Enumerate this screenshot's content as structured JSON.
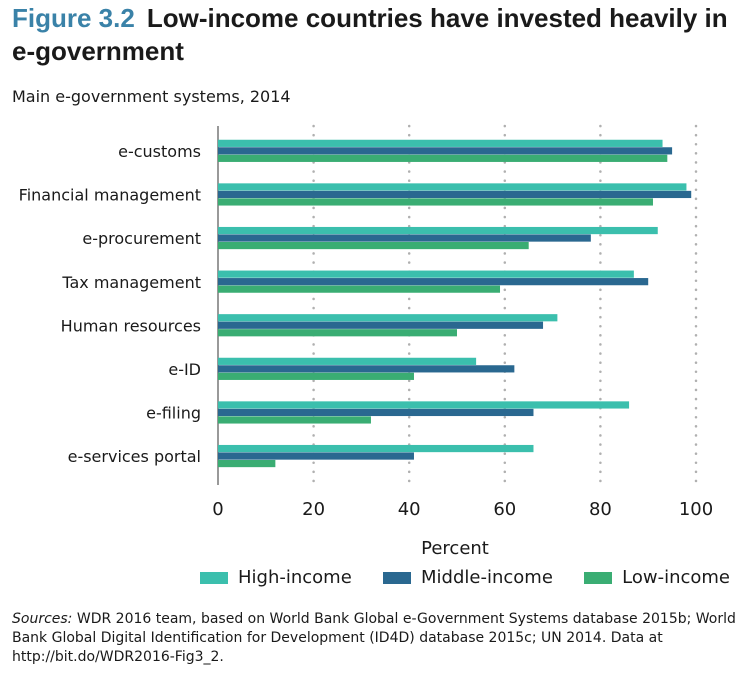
{
  "header": {
    "figure_label": "Figure 3.2",
    "title": "Low-income countries have invested heavily in e-government",
    "subtitle": "Main e-government systems, 2014"
  },
  "colors": {
    "title_accent": "#3a82a8",
    "high_income": "#3bbfad",
    "middle_income": "#2a6890",
    "low_income": "#3aad73",
    "gridline": "#b0b0b0"
  },
  "chart_data": {
    "type": "bar",
    "orientation": "horizontal",
    "categories": [
      "e-customs",
      "Financial management",
      "e-procurement",
      "Tax management",
      "Human resources",
      "e-ID",
      "e-filing",
      "e-services portal"
    ],
    "series": [
      {
        "name": "High-income",
        "values": [
          93,
          98,
          92,
          87,
          71,
          54,
          86,
          66
        ]
      },
      {
        "name": "Middle-income",
        "values": [
          95,
          99,
          78,
          90,
          68,
          62,
          66,
          41
        ]
      },
      {
        "name": "Low-income",
        "values": [
          94,
          91,
          65,
          59,
          50,
          41,
          32,
          12
        ]
      }
    ],
    "xlabel": "Percent",
    "xlim": [
      0,
      100
    ],
    "xticks": [
      "0",
      "20",
      "40",
      "60",
      "80",
      "100"
    ],
    "grid": "vertical dotted",
    "legend_position": "bottom"
  },
  "legend": {
    "high": "High-income",
    "middle": "Middle-income",
    "low": "Low-income"
  },
  "source": {
    "label": "Sources:",
    "text": " WDR 2016 team, based on World Bank Global e-Government Systems database 2015b; World Bank Global Digital Identification for Development (ID4D) database 2015c; UN 2014. Data at http://bit.do/WDR2016-Fig3_2."
  }
}
